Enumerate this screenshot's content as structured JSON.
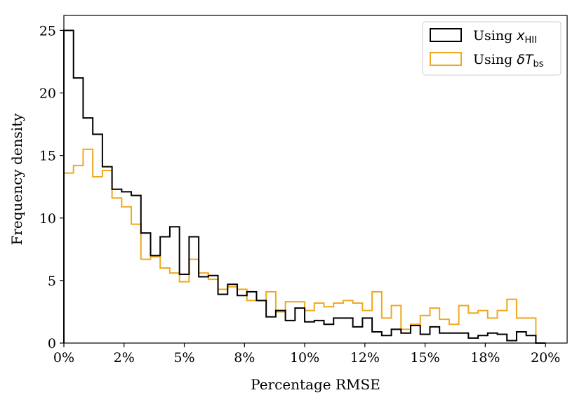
{
  "chart_data": {
    "type": "histogram",
    "xlabel": "Percentage RMSE",
    "ylabel": "Frequency density",
    "xlim": [
      0,
      20.9
    ],
    "ylim": [
      0,
      26.2
    ],
    "x_ticks": [
      0,
      2.5,
      5,
      7.5,
      10,
      12.5,
      15,
      17.5,
      20
    ],
    "x_tick_labels": [
      "0%",
      "2%",
      "5%",
      "8%",
      "10%",
      "12%",
      "15%",
      "18%",
      "20%"
    ],
    "y_ticks": [
      0,
      5,
      10,
      15,
      20,
      25
    ],
    "y_tick_labels": [
      "0",
      "5",
      "10",
      "15",
      "20",
      "25"
    ],
    "bin_edges": [
      0,
      0.4,
      0.8,
      1.2,
      1.6,
      2.0,
      2.4,
      2.8,
      3.2,
      3.6,
      4.0,
      4.4,
      4.8,
      5.2,
      5.6,
      6.0,
      6.4,
      6.8,
      7.2,
      7.6,
      8.0,
      8.4,
      8.8,
      9.2,
      9.6,
      10.0,
      10.4,
      10.8,
      11.2,
      11.6,
      12.0,
      12.4,
      12.8,
      13.2,
      13.6,
      14.0,
      14.4,
      14.8,
      15.2,
      15.6,
      16.0,
      16.4,
      16.8,
      17.2,
      17.6,
      18.0,
      18.4,
      18.8,
      19.2,
      19.6,
      20.0
    ],
    "series": [
      {
        "name": "Using x_HII",
        "color": "#000000",
        "values": [
          25.0,
          21.2,
          18.0,
          16.7,
          14.1,
          12.3,
          12.1,
          11.8,
          8.8,
          7.0,
          8.5,
          9.3,
          5.5,
          8.5,
          5.3,
          5.4,
          3.9,
          4.7,
          3.8,
          4.1,
          3.4,
          2.1,
          2.6,
          1.8,
          2.8,
          1.7,
          1.8,
          1.5,
          2.0,
          2.0,
          1.3,
          2.0,
          0.9,
          0.6,
          1.1,
          0.8,
          1.4,
          0.7,
          1.3,
          0.8,
          0.8,
          0.8,
          0.4,
          0.6,
          0.8,
          0.7,
          0.2,
          0.9,
          0.6,
          0.0
        ]
      },
      {
        "name": "Using δT_bs",
        "color": "#f0a820",
        "values": [
          13.6,
          14.2,
          15.5,
          13.3,
          13.8,
          11.6,
          10.9,
          9.5,
          6.7,
          6.9,
          6.0,
          5.6,
          4.9,
          6.7,
          5.6,
          5.1,
          4.3,
          4.5,
          4.3,
          3.4,
          3.4,
          4.1,
          2.5,
          3.3,
          3.3,
          2.6,
          3.2,
          2.9,
          3.2,
          3.4,
          3.2,
          2.6,
          4.1,
          2.0,
          3.0,
          1.1,
          1.5,
          2.2,
          2.8,
          1.9,
          1.5,
          3.0,
          2.4,
          2.6,
          2.0,
          2.6,
          3.5,
          2.0,
          2.0,
          0.0
        ]
      }
    ],
    "legend": {
      "position": "top-right",
      "entries": [
        {
          "prefix": "Using ",
          "math": "x",
          "sub": "HII",
          "color": "#000000"
        },
        {
          "prefix": "Using ",
          "math": "δT",
          "sub": "bs",
          "color": "#f0a820"
        }
      ]
    },
    "grid": false
  }
}
